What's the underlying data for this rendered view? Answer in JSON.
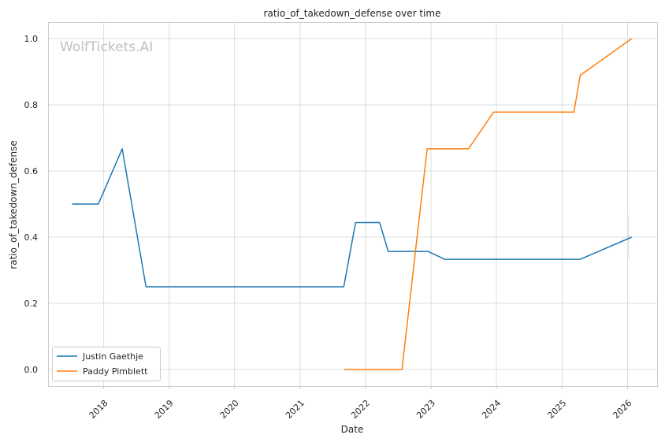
{
  "chart_data": {
    "type": "line",
    "title": "ratio_of_takedown_defense over time",
    "xlabel": "Date",
    "ylabel": "ratio_of_takedown_defense",
    "watermark": "WolfTickets.AI",
    "x_ticks": [
      "2018",
      "2019",
      "2020",
      "2021",
      "2022",
      "2023",
      "2024",
      "2025",
      "2026"
    ],
    "y_ticks": [
      "0.0",
      "0.2",
      "0.4",
      "0.6",
      "0.8",
      "1.0"
    ],
    "xlim": [
      "2017-03-01",
      "2026-06-15"
    ],
    "ylim": [
      -0.05,
      1.05
    ],
    "grid": true,
    "legend_position": "lower-left",
    "series": [
      {
        "name": "Justin Gaethje",
        "color": "#1f77b4",
        "points": [
          {
            "x": "2017-07-08",
            "y": 0.5
          },
          {
            "x": "2017-12-02",
            "y": 0.5
          },
          {
            "x": "2018-04-14",
            "y": 0.667
          },
          {
            "x": "2018-08-25",
            "y": 0.25
          },
          {
            "x": "2021-09-01",
            "y": 0.25
          },
          {
            "x": "2021-11-06",
            "y": 0.444
          },
          {
            "x": "2022-03-20",
            "y": 0.444
          },
          {
            "x": "2022-05-07",
            "y": 0.357
          },
          {
            "x": "2022-12-15",
            "y": 0.357
          },
          {
            "x": "2023-03-18",
            "y": 0.333
          },
          {
            "x": "2025-04-12",
            "y": 0.333
          },
          {
            "x": "2026-01-24",
            "y": 0.4
          }
        ]
      },
      {
        "name": "Paddy Pimblett",
        "color": "#ff7f0e",
        "points": [
          {
            "x": "2021-09-04",
            "y": 0.0
          },
          {
            "x": "2022-07-23",
            "y": 0.0
          },
          {
            "x": "2022-12-10",
            "y": 0.667
          },
          {
            "x": "2023-07-29",
            "y": 0.667
          },
          {
            "x": "2023-12-16",
            "y": 0.778
          },
          {
            "x": "2025-03-08",
            "y": 0.778
          },
          {
            "x": "2025-04-12",
            "y": 0.889
          },
          {
            "x": "2026-01-24",
            "y": 1.0
          }
        ]
      }
    ]
  }
}
